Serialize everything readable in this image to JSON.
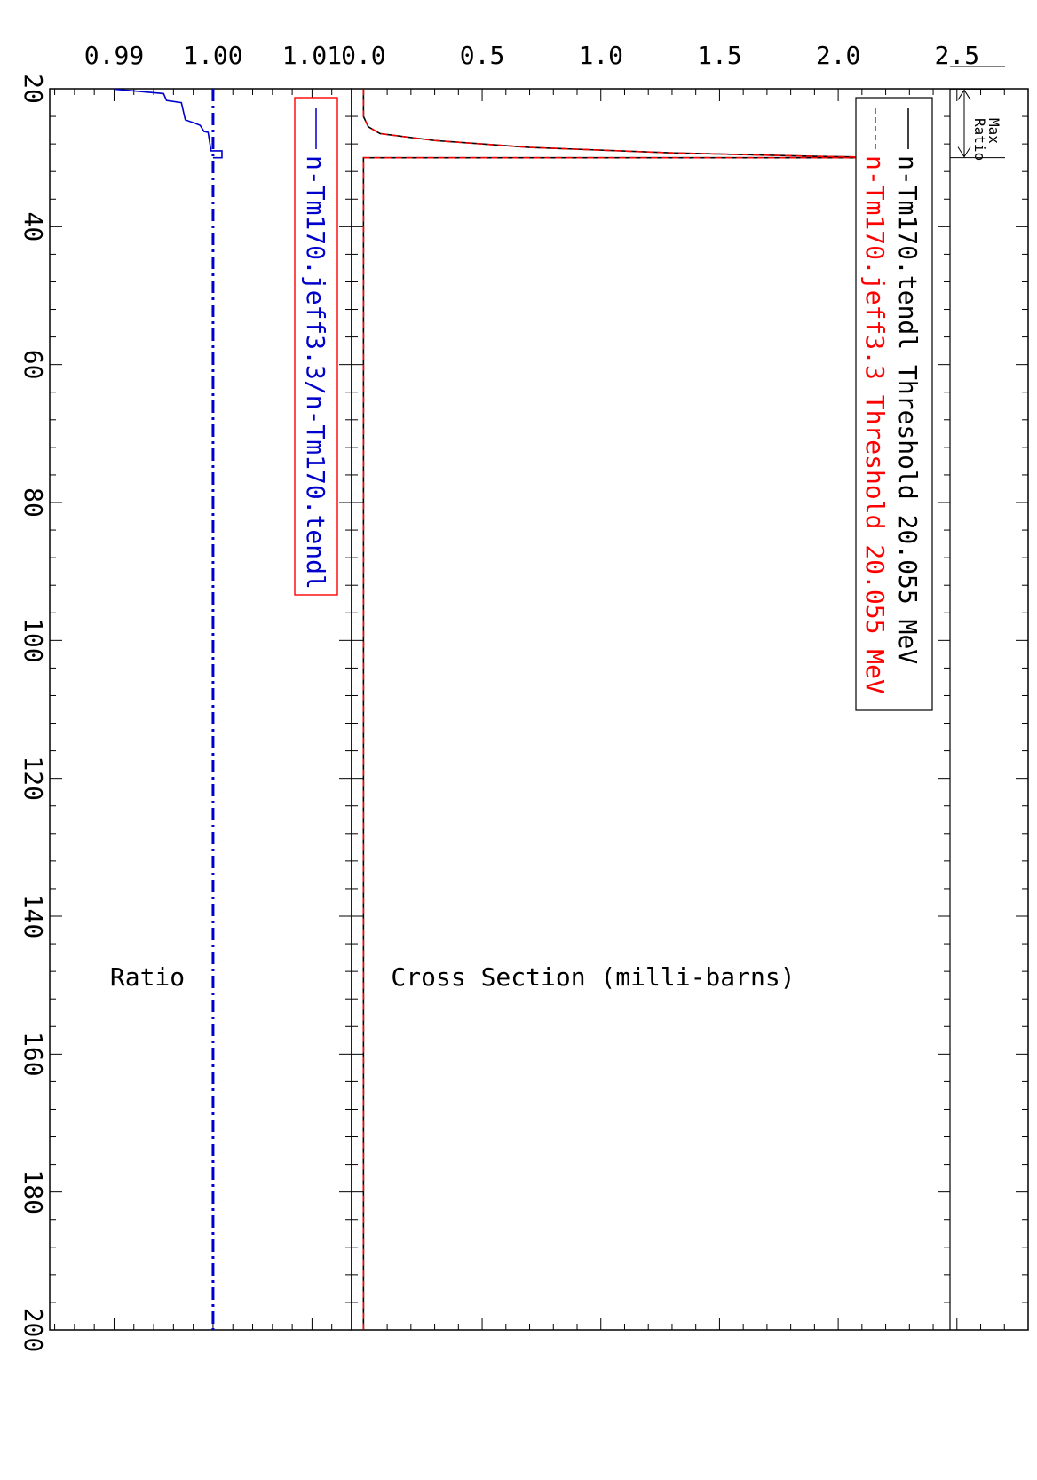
{
  "chart_data": [
    {
      "type": "line",
      "panel": "cross-section",
      "xlabel": "",
      "ylabel": "Cross Section (milli-barns)",
      "xlim": [
        20,
        200
      ],
      "ylim": [
        -0.05,
        2.8
      ],
      "x_ticks": [
        20,
        40,
        60,
        80,
        100,
        120,
        140,
        160,
        180,
        200
      ],
      "x_tick_labels": [
        "20",
        "40",
        "60",
        "80",
        "100",
        "120",
        "140",
        "160",
        "180",
        "200"
      ],
      "y_ticks": [
        0.0,
        0.5,
        1.0,
        1.5,
        2.0,
        2.5
      ],
      "y_tick_labels": [
        "0.0",
        "0.5",
        "1.0",
        "1.5",
        "2.0",
        "2.5"
      ],
      "legend": "top-left",
      "annotation": {
        "line1": "Max",
        "line2": "Ratio",
        "x_from": 20.055,
        "x_to": 30
      },
      "series": [
        {
          "name": "n-Tm170.tendl Threshold 20.055 MeV",
          "color": "#000000",
          "dash": "solid",
          "x": [
            20.055,
            24,
            25.5,
            26.5,
            27.5,
            28.5,
            29.3,
            29.8,
            30.0,
            30.0,
            200
          ],
          "y": [
            0.0,
            0.0,
            0.02,
            0.07,
            0.3,
            0.7,
            1.3,
            1.9,
            2.27,
            0.0,
            0.0
          ]
        },
        {
          "name": "n-Tm170.jeff3.3 Threshold 20.055 MeV",
          "color": "#ff0000",
          "dash": "dashed",
          "x": [
            20.055,
            24,
            25.5,
            26.5,
            27.5,
            28.5,
            29.3,
            29.8,
            30.0,
            30.0,
            200
          ],
          "y": [
            0.0,
            0.0,
            0.02,
            0.07,
            0.3,
            0.7,
            1.3,
            1.9,
            2.27,
            0.0,
            0.0
          ]
        }
      ]
    },
    {
      "type": "line",
      "panel": "ratio",
      "xlabel": "",
      "ylabel": "Ratio",
      "xlim": [
        20,
        200
      ],
      "ylim": [
        0.9835,
        1.014
      ],
      "y_ticks": [
        0.99,
        1.0,
        1.01
      ],
      "y_tick_labels": [
        "0.99",
        "1.00",
        "1.01"
      ],
      "legend": "top-left",
      "series": [
        {
          "name": "n-Tm170.jeff3.3/n-Tm170.tendl",
          "color": "#0000cc",
          "dash": "solid",
          "x": [
            20.055,
            20.7,
            21.7,
            22.0,
            24.5,
            25.0,
            25.3,
            26.2,
            26.3,
            29.0,
            29.0,
            30.0,
            30.0
          ],
          "y": [
            0.99,
            0.995,
            0.9953,
            0.9968,
            0.9972,
            0.9982,
            0.9987,
            0.9991,
            0.9995,
            0.9998,
            1.0009,
            1.0009,
            1.0
          ]
        },
        {
          "name": "",
          "color": "#0000cc",
          "dash": "dashdot",
          "x": [
            20,
            200
          ],
          "y": [
            1.0,
            1.0
          ]
        }
      ]
    }
  ]
}
